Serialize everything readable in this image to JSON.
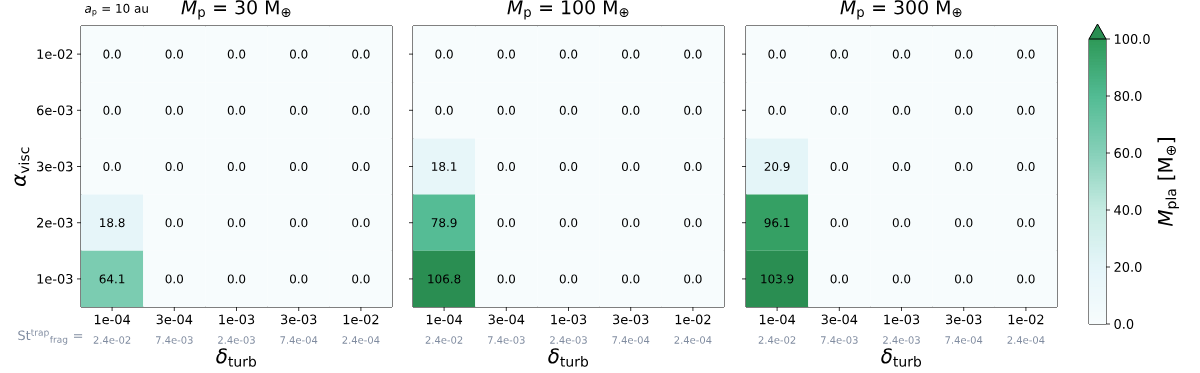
{
  "chart_data": [
    {
      "type": "heatmap",
      "title": "*M*$_{p}$ = 30 M$_{⊕}$",
      "xlabel": "*δ*$_{turb}$",
      "ylabel": "*α*$_{visc}$",
      "categories": [
        "1e-04",
        "3e-04",
        "1e-03",
        "3e-03",
        "1e-02"
      ],
      "y_categories": [
        "1e-02",
        "6e-03",
        "3e-03",
        "2e-03",
        "1e-03"
      ],
      "cells": [
        [
          0.0,
          0.0,
          0.0,
          0.0,
          0.0
        ],
        [
          0.0,
          0.0,
          0.0,
          0.0,
          0.0
        ],
        [
          0.0,
          0.0,
          0.0,
          0.0,
          0.0
        ],
        [
          18.8,
          0.0,
          0.0,
          0.0,
          0.0
        ],
        [
          64.1,
          0.0,
          0.0,
          0.0,
          0.0
        ]
      ],
      "cell_labels": [
        [
          "0.0",
          "0.0",
          "0.0",
          "0.0",
          "0.0"
        ],
        [
          "0.0",
          "0.0",
          "0.0",
          "0.0",
          "0.0"
        ],
        [
          "0.0",
          "0.0",
          "0.0",
          "0.0",
          "0.0"
        ],
        [
          "18.8",
          "0.0",
          "0.0",
          "0.0",
          "0.0"
        ],
        [
          "64.1",
          "0.0",
          "0.0",
          "0.0",
          "0.0"
        ]
      ],
      "annotations": [
        "*a*$_{p}$ = 10 au",
        "St$^{trap}$$_{frag}$ =",
        "2.4e-02",
        "7.4e-03",
        "2.4e-03",
        "7.4e-04",
        "2.4e-04"
      ]
    },
    {
      "type": "heatmap",
      "title": "*M*$_{p}$ = 100 M$_{⊕}$",
      "xlabel": "*δ*$_{turb}$",
      "tick_labels": "x",
      "categories": [
        "1e-04",
        "3e-04",
        "1e-03",
        "3e-03",
        "1e-02"
      ],
      "y_categories": [
        "1e-02",
        "6e-03",
        "3e-03",
        "2e-03",
        "1e-03"
      ],
      "cells": [
        [
          0.0,
          0.0,
          0.0,
          0.0,
          0.0
        ],
        [
          0.0,
          0.0,
          0.0,
          0.0,
          0.0
        ],
        [
          18.1,
          0.0,
          0.0,
          0.0,
          0.0
        ],
        [
          78.9,
          0.0,
          0.0,
          0.0,
          0.0
        ],
        [
          106.8,
          0.0,
          0.0,
          0.0,
          0.0
        ]
      ],
      "cell_labels": [
        [
          "0.0",
          "0.0",
          "0.0",
          "0.0",
          "0.0"
        ],
        [
          "0.0",
          "0.0",
          "0.0",
          "0.0",
          "0.0"
        ],
        [
          "18.1",
          "0.0",
          "0.0",
          "0.0",
          "0.0"
        ],
        [
          "78.9",
          "0.0",
          "0.0",
          "0.0",
          "0.0"
        ],
        [
          "106.8",
          "0.0",
          "0.0",
          "0.0",
          "0.0"
        ]
      ],
      "annotations": [
        "2.4e-02",
        "7.4e-03",
        "2.4e-03",
        "7.4e-04",
        "2.4e-04"
      ]
    },
    {
      "type": "heatmap",
      "title": "*M*$_{p}$ = 300 M$_{⊕}$",
      "xlabel": "*δ*$_{turb}$",
      "tick_labels": "x",
      "categories": [
        "1e-04",
        "3e-04",
        "1e-03",
        "3e-03",
        "1e-02"
      ],
      "y_categories": [
        "1e-02",
        "6e-03",
        "3e-03",
        "2e-03",
        "1e-03"
      ],
      "cells": [
        [
          0.0,
          0.0,
          0.0,
          0.0,
          0.0
        ],
        [
          0.0,
          0.0,
          0.0,
          0.0,
          0.0
        ],
        [
          20.9,
          0.0,
          0.0,
          0.0,
          0.0
        ],
        [
          96.1,
          0.0,
          0.0,
          0.0,
          0.0
        ],
        [
          103.9,
          0.0,
          0.0,
          0.0,
          0.0
        ]
      ],
      "cell_labels": [
        [
          "0.0",
          "0.0",
          "0.0",
          "0.0",
          "0.0"
        ],
        [
          "0.0",
          "0.0",
          "0.0",
          "0.0",
          "0.0"
        ],
        [
          "20.9",
          "0.0",
          "0.0",
          "0.0",
          "0.0"
        ],
        [
          "96.1",
          "0.0",
          "0.0",
          "0.0",
          "0.0"
        ],
        [
          "103.9",
          "0.0",
          "0.0",
          "0.0",
          "0.0"
        ]
      ],
      "clim": [
        0,
        100
      ],
      "clabel": "*M*$_{pla}$ [M$_{⊕}$]",
      "cticks": [
        {
          "value": 0,
          "label": "0.0"
        },
        {
          "value": 20,
          "label": "20.0"
        },
        {
          "value": 40,
          "label": "40.0"
        },
        {
          "value": 60,
          "label": "60.0"
        },
        {
          "value": 80,
          "label": "80.0"
        },
        {
          "value": 100,
          "label": "100.0"
        }
      ],
      "annotations": [
        "2.4e-02",
        "7.4e-03",
        "2.4e-03",
        "7.4e-04",
        "2.4e-04"
      ]
    }
  ]
}
